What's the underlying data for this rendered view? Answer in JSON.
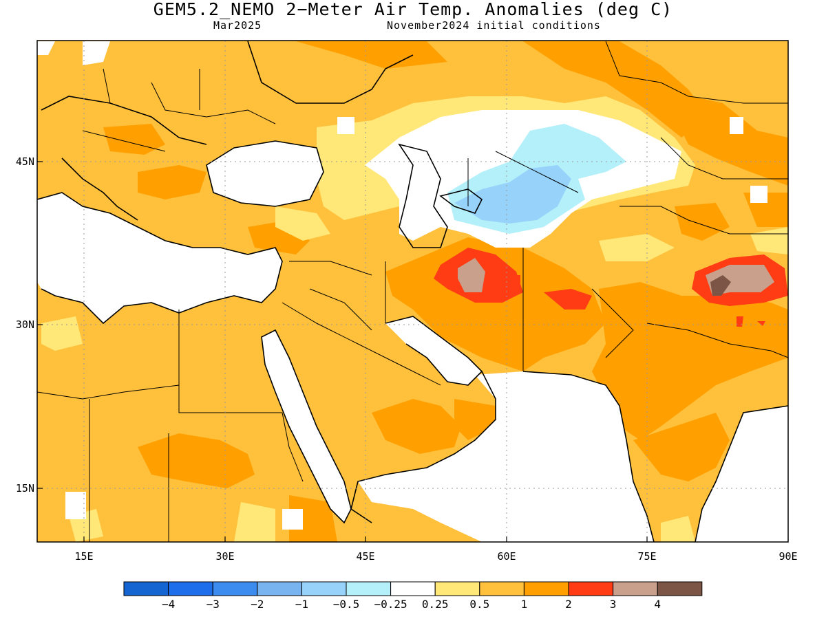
{
  "title": "GEM5.2_NEMO 2−Meter Air Temp. Anomalies (deg C)",
  "subtitle_left": "Mar2025",
  "subtitle_right": "November2024 initial conditions",
  "axes": {
    "lon_ticks": [
      "15E",
      "30E",
      "45E",
      "60E",
      "75E",
      "90E"
    ],
    "lat_ticks": [
      "45N",
      "30N",
      "15N"
    ],
    "lon_range": [
      10,
      90
    ],
    "lat_range": [
      10,
      55
    ]
  },
  "colorbar": {
    "labels": [
      "−4",
      "−3",
      "−2",
      "−1",
      "−0.5",
      "−0.25",
      "0.25",
      "0.5",
      "1",
      "2",
      "3",
      "4"
    ],
    "colors": [
      "#1464d2",
      "#1e6eeb",
      "#3c8cf0",
      "#78b4f0",
      "#96d2fa",
      "#b4f0fa",
      "#ffffff",
      "#ffe878",
      "#ffc03c",
      "#ffa000",
      "#ff3c14",
      "#c8a08c",
      "#7d5546"
    ]
  },
  "palette": {
    "land_default": "#ffc03c",
    "warm": "#ffa000",
    "light": "#ffe878",
    "red": "#ff3c14",
    "brown_light": "#c8a08c",
    "brown_dark": "#7d5546",
    "cyan": "#b4f0fa",
    "blue": "#96d2fa"
  }
}
